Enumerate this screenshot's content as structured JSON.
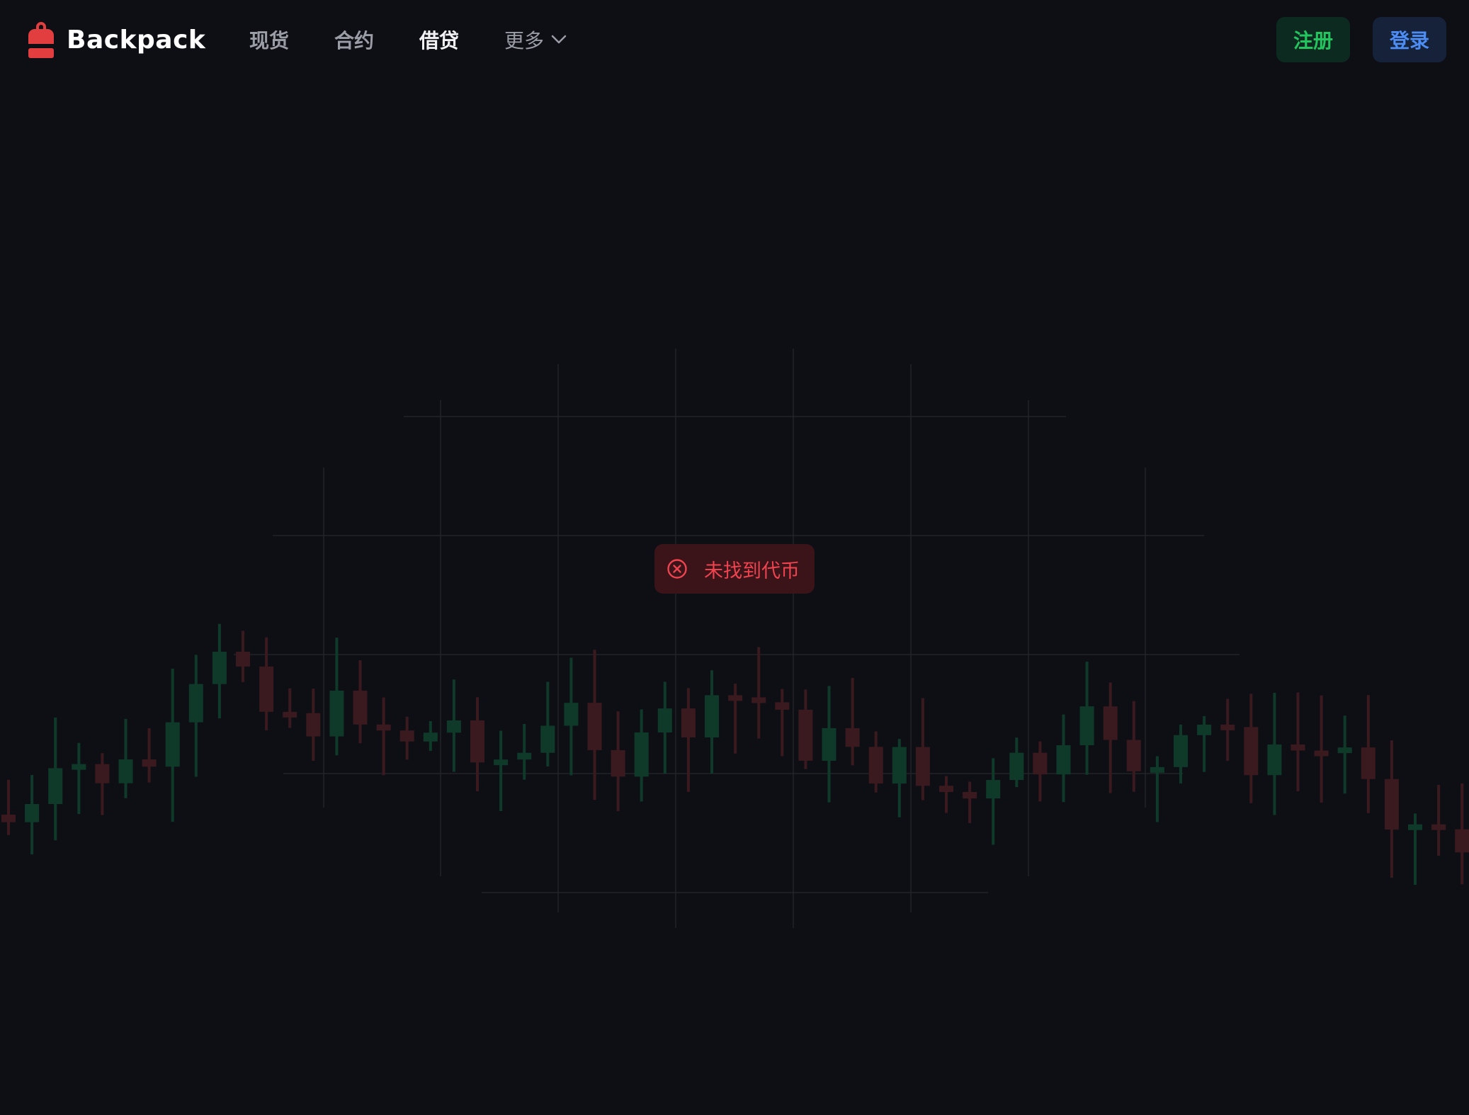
{
  "header": {
    "brand_name": "Backpack",
    "nav": {
      "spot": "现货",
      "futures": "合约",
      "lending": "借贷",
      "more": "更多"
    },
    "register_label": "注册",
    "login_label": "登录"
  },
  "toast": {
    "message": "未找到代币",
    "icon": "error-circle-x-icon"
  },
  "colors": {
    "background": "#0e0f14",
    "brand_red": "#e33e3f",
    "up_green": "#22c55e",
    "down_red": "#ef4350",
    "login_blue": "#4c8ef5"
  }
}
